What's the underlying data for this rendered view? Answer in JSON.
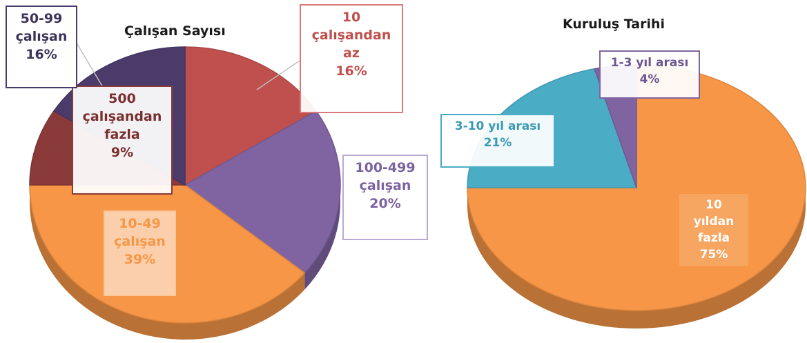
{
  "chart_data": [
    {
      "type": "pie",
      "title": "Çalışan Sayısı",
      "slices": [
        {
          "label": [
            "10",
            "çalışandan",
            "az"
          ],
          "value": 16,
          "value_text": "16%",
          "color": "#c0504d"
        },
        {
          "label": [
            "100-499",
            "çalışan"
          ],
          "value": 20,
          "value_text": "20%",
          "color": "#8064a2"
        },
        {
          "label": [
            "10-49",
            "çalışan"
          ],
          "value": 39,
          "value_text": "39%",
          "color": "#f79646"
        },
        {
          "label": [
            "500",
            "çalışandan",
            "fazla"
          ],
          "value": 9,
          "value_text": "9%",
          "color": "#8b3a3a"
        },
        {
          "label": [
            "50-99",
            "çalışan"
          ],
          "value": 16,
          "value_text": "16%",
          "color": "#4a3b6b"
        }
      ]
    },
    {
      "type": "pie",
      "title": "Kuruluş Tarihi",
      "slices": [
        {
          "label": [
            "10 yıldan",
            "fazla"
          ],
          "value": 75,
          "value_text": "75%",
          "color": "#f79646"
        },
        {
          "label": [
            "3-10 yıl arası"
          ],
          "value": 21,
          "value_text": "21%",
          "color": "#4bacc6"
        },
        {
          "label": [
            "1-3 yıl arası"
          ],
          "value": 4,
          "value_text": "4%",
          "color": "#8064a2"
        }
      ]
    }
  ]
}
